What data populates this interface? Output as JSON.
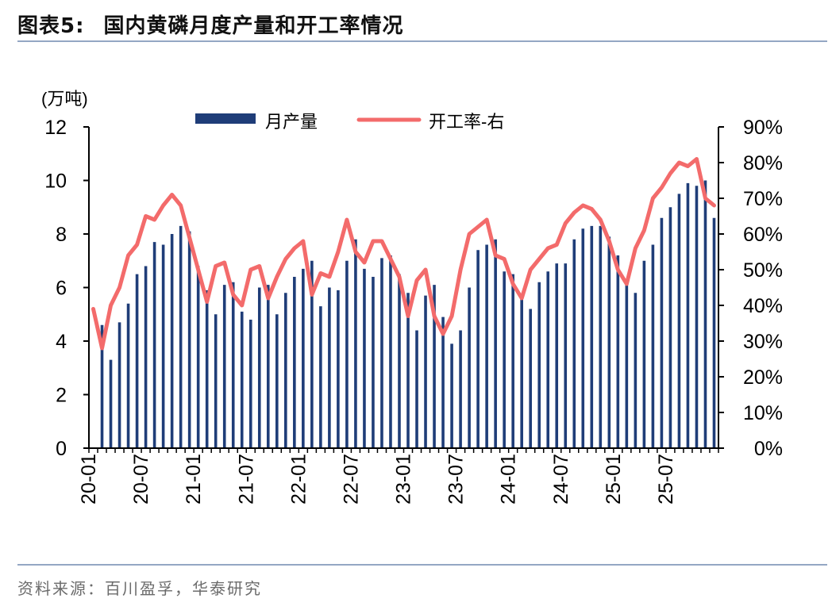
{
  "header": {
    "label": "图表5:",
    "title": "国内黄磷月度产量和开工率情况"
  },
  "source": "资料来源：百川盈孚，华泰研究",
  "chart_data": {
    "type": "bar+line",
    "title": "国内黄磷月度产量和开工率情况",
    "left_axis_unit": "(万吨)",
    "ylim_left": [
      0,
      12
    ],
    "yticks_left": [
      "0",
      "2",
      "4",
      "6",
      "8",
      "10",
      "12"
    ],
    "ylim_right": [
      0,
      90
    ],
    "yticks_right": [
      "0%",
      "10%",
      "20%",
      "30%",
      "40%",
      "50%",
      "60%",
      "70%",
      "80%",
      "90%"
    ],
    "x_tick_labels": [
      "20-01",
      "20-07",
      "21-01",
      "21-07",
      "22-01",
      "22-07",
      "23-01",
      "23-07",
      "24-01",
      "24-07",
      "25-01",
      "25-07"
    ],
    "legend": {
      "placement": "top",
      "bar": "月产量",
      "line": "开工率-右"
    },
    "colors": {
      "bar": "#1f3d78",
      "line": "#f36b6b",
      "axis": "#000000"
    },
    "bar_series": {
      "name": "月产量",
      "values": [
        4.6,
        3.3,
        4.7,
        5.4,
        6.5,
        6.8,
        7.7,
        7.6,
        8.0,
        8.3,
        8.1,
        6.8,
        5.9,
        5.0,
        6.1,
        6.2,
        5.1,
        4.8,
        6.0,
        6.1,
        5.0,
        5.8,
        6.4,
        6.7,
        7.0,
        5.3,
        6.0,
        5.9,
        7.0,
        7.8,
        6.7,
        6.4,
        7.1,
        7.2,
        6.5,
        5.8,
        4.4,
        5.7,
        6.1,
        4.9,
        3.9,
        4.4,
        6.0,
        7.4,
        7.6,
        7.8,
        6.6,
        6.5,
        5.7,
        5.2,
        6.2,
        6.6,
        6.9,
        6.9,
        7.8,
        8.2,
        8.3,
        8.3,
        7.9,
        7.2,
        6.2,
        5.8,
        7.0,
        7.6,
        8.6,
        9.0,
        9.5,
        9.9,
        9.8,
        10.0,
        8.6
      ]
    },
    "line_series": {
      "name": "开工率-右",
      "values": [
        39,
        28,
        40,
        45,
        54,
        57,
        65,
        64,
        68,
        71,
        68,
        59,
        50,
        41,
        51,
        52,
        43,
        40,
        50,
        51,
        42,
        48,
        53,
        56,
        58,
        43,
        49,
        48,
        55,
        64,
        55,
        52,
        58,
        58,
        53,
        48,
        37,
        47,
        50,
        37,
        32,
        37,
        50,
        60,
        62,
        64,
        54,
        53,
        46,
        42,
        50,
        53,
        56,
        57,
        63,
        66,
        68,
        67,
        64,
        58,
        50,
        46,
        56,
        61,
        70,
        73,
        77,
        80,
        79,
        81,
        70,
        68
      ]
    }
  }
}
